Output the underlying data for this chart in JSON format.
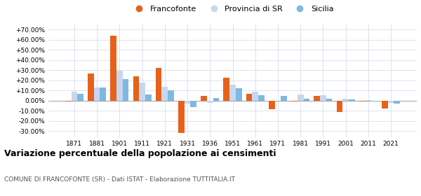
{
  "years": [
    1871,
    1881,
    1901,
    1911,
    1921,
    1931,
    1936,
    1951,
    1961,
    1971,
    1981,
    1991,
    2001,
    2011,
    2021
  ],
  "francofonte": [
    -0.5,
    26.5,
    64.0,
    24.0,
    32.0,
    -32.0,
    5.0,
    22.5,
    7.0,
    -8.5,
    -1.0,
    4.5,
    -11.0,
    -0.5,
    -8.0
  ],
  "provincia_sr": [
    9.0,
    13.0,
    29.5,
    17.5,
    13.5,
    -3.0,
    -2.0,
    16.0,
    8.5,
    0.0,
    6.0,
    5.5,
    2.0,
    0.5,
    -2.0
  ],
  "sicilia": [
    7.0,
    13.0,
    21.5,
    6.0,
    10.5,
    -6.0,
    2.5,
    12.0,
    5.5,
    5.0,
    2.0,
    2.0,
    1.5,
    -0.5,
    -3.0
  ],
  "color_francofonte": "#E8611A",
  "color_provincia": "#C5D8F0",
  "color_sicilia": "#7FB8E0",
  "title": "Variazione percentuale della popolazione ai censimenti",
  "subtitle": "COMUNE DI FRANCOFONTE (SR) - Dati ISTAT - Elaborazione TUTTITALIA.IT",
  "legend_labels": [
    "Francofonte",
    "Provincia di SR",
    "Sicilia"
  ],
  "yticks": [
    -30,
    -20,
    -10,
    0,
    10,
    20,
    30,
    40,
    50,
    60,
    70
  ],
  "ylim": [
    -36,
    76
  ],
  "background_color": "#ffffff",
  "grid_color": "#d0d8e8"
}
